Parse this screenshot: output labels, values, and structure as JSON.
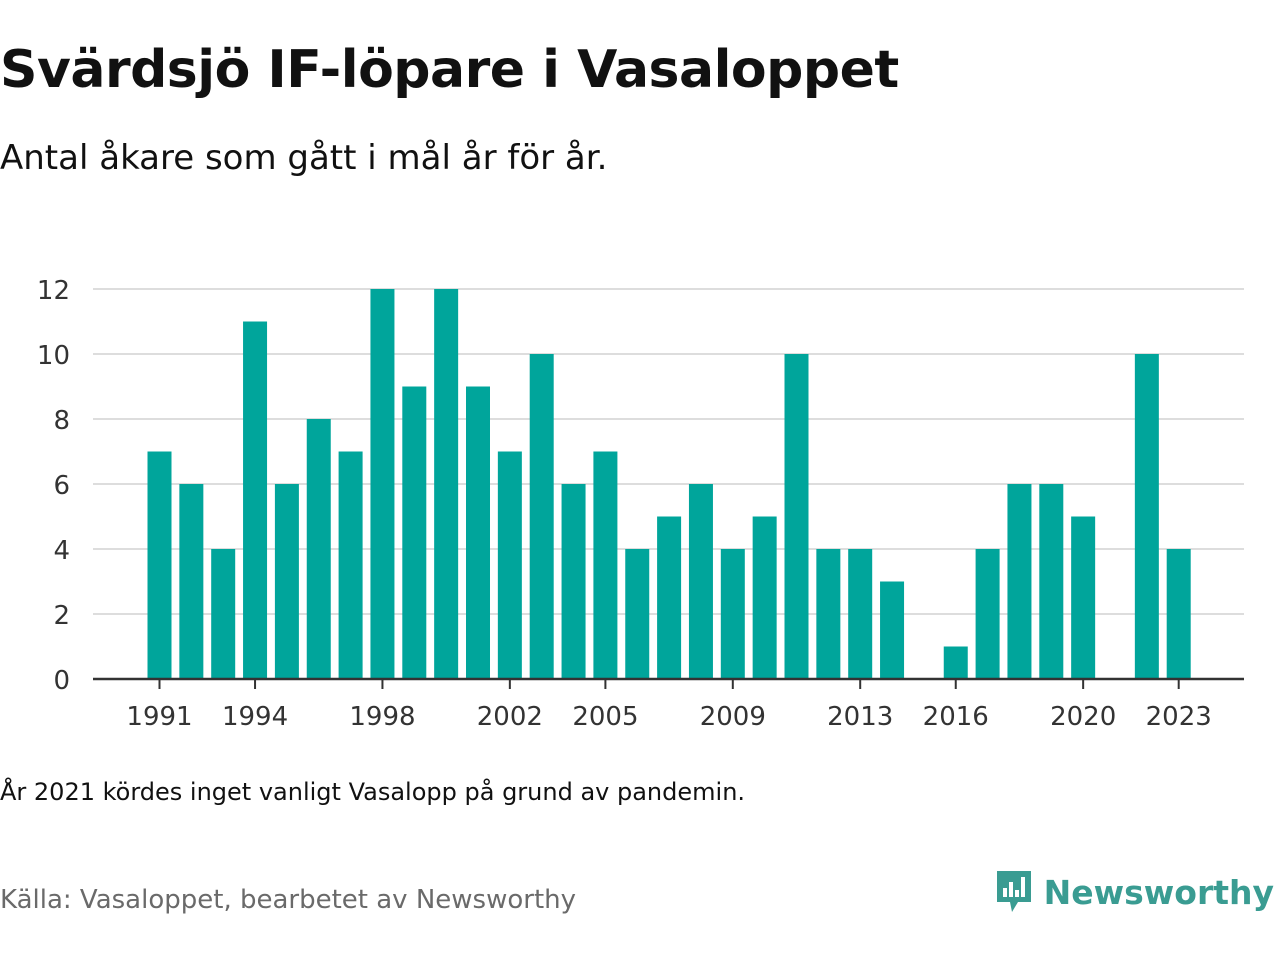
{
  "title": "Svärdsjö IF-löpare i Vasaloppet",
  "subtitle": "Antal åkare som gått i mål år för år.",
  "note": "År 2021 kördes inget vanligt Vasalopp på grund av pandemin.",
  "source": "Källa: Vasaloppet, bearbetet av Newsworthy",
  "brand": {
    "name": "Newsworthy",
    "icon": "newsworthy-logo-icon",
    "color": "#3a9c92"
  },
  "colors": {
    "bar": "#00a59b",
    "grid": "#dddddd",
    "axis": "#333333"
  },
  "chart_data": {
    "type": "bar",
    "categories": [
      1991,
      1992,
      1993,
      1994,
      1995,
      1996,
      1997,
      1998,
      1999,
      2000,
      2001,
      2002,
      2003,
      2004,
      2005,
      2006,
      2007,
      2008,
      2009,
      2010,
      2011,
      2012,
      2013,
      2014,
      2015,
      2016,
      2017,
      2018,
      2019,
      2020,
      2021,
      2022,
      2023
    ],
    "values": [
      7,
      6,
      4,
      11,
      6,
      8,
      7,
      12,
      9,
      12,
      9,
      7,
      10,
      6,
      7,
      4,
      5,
      6,
      4,
      5,
      10,
      4,
      4,
      3,
      0,
      1,
      4,
      6,
      6,
      5,
      0,
      10,
      4
    ],
    "xticks": [
      1991,
      1994,
      1998,
      2002,
      2005,
      2009,
      2013,
      2016,
      2020,
      2023
    ],
    "yticks": [
      0,
      2,
      4,
      6,
      8,
      10,
      12
    ],
    "ylim": [
      0,
      12
    ],
    "grid": true
  }
}
